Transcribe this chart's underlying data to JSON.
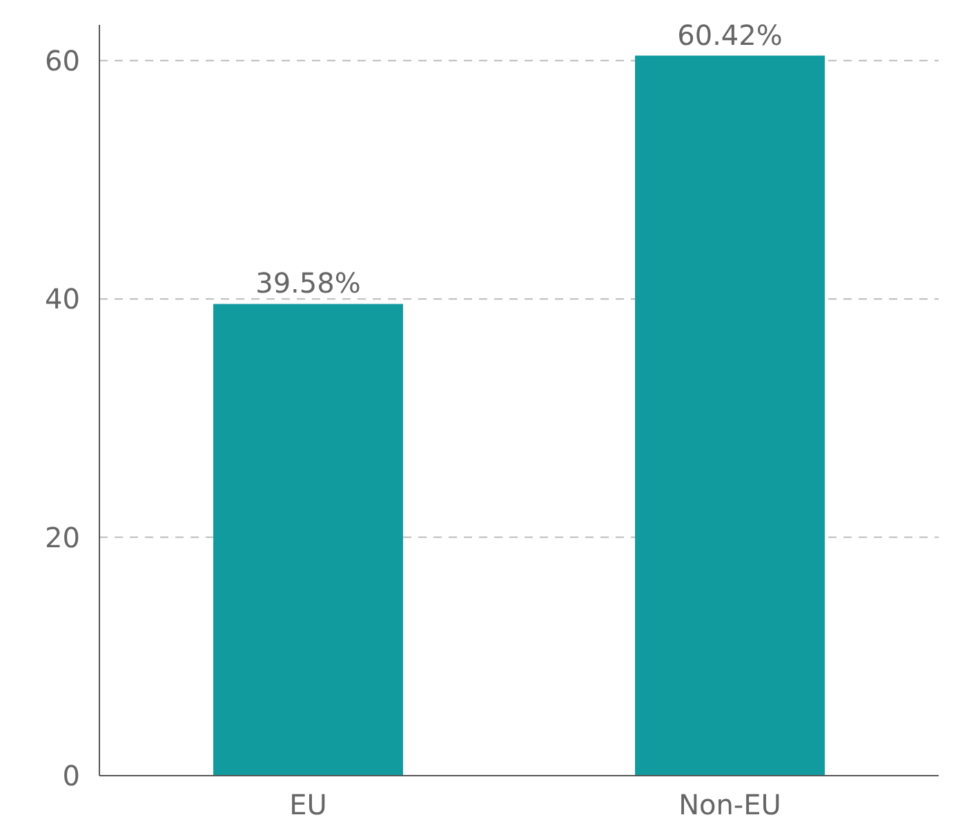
{
  "chart_data": {
    "type": "bar",
    "categories": [
      "EU",
      "Non-EU"
    ],
    "values": [
      39.58,
      60.42
    ],
    "value_labels": [
      "39.58%",
      "60.42%"
    ],
    "color": "#129b9f",
    "ylim": [
      0,
      63
    ],
    "yticks": [
      0,
      20,
      40,
      60
    ],
    "grid": "y"
  }
}
